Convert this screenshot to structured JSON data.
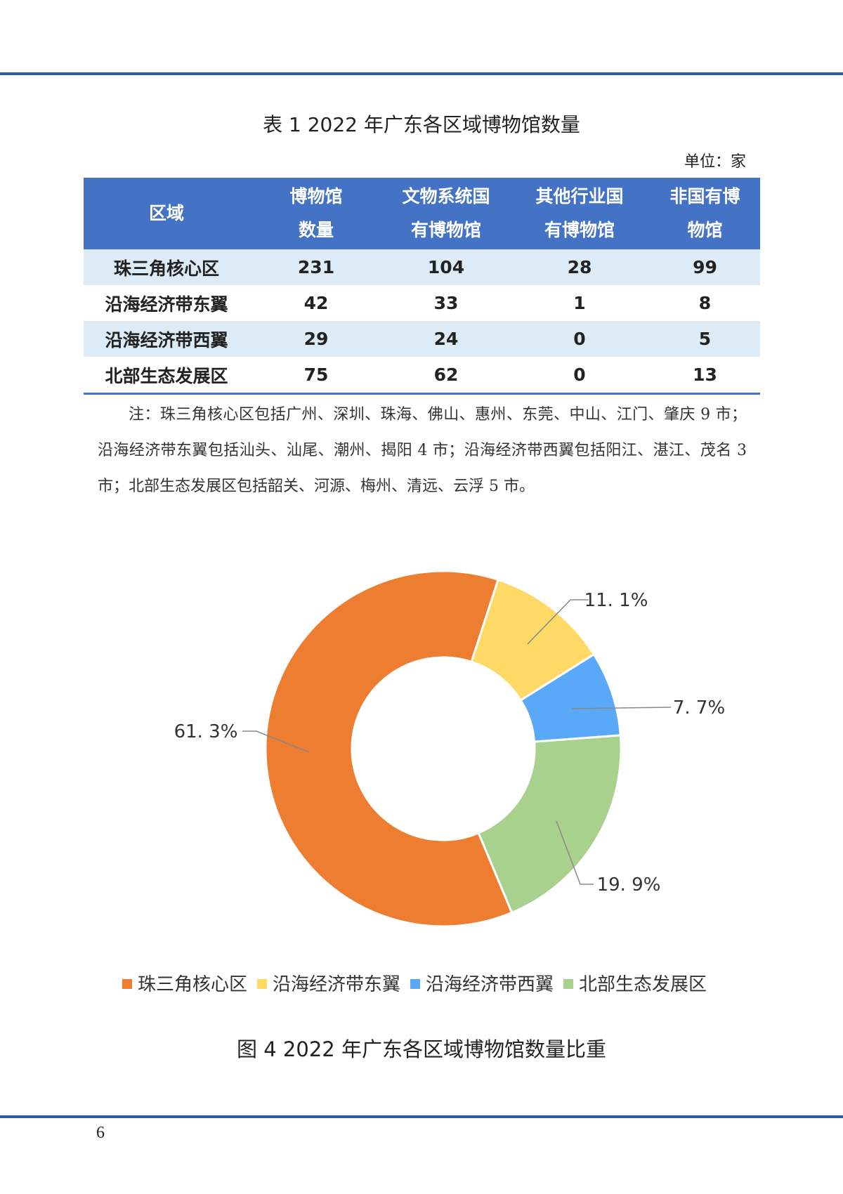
{
  "table": {
    "title": "表 1 2022 年广东各区域博物馆数量",
    "unit": "单位：家",
    "header": [
      [
        "区域"
      ],
      [
        "博物馆",
        "数量"
      ],
      [
        "文物系统国",
        "有博物馆"
      ],
      [
        "其他行业国",
        "有博物馆"
      ],
      [
        "非国有博",
        "物馆"
      ]
    ],
    "rows": [
      [
        "珠三角核心区",
        231,
        104,
        28,
        99
      ],
      [
        "沿海经济带东翼",
        42,
        33,
        1,
        8
      ],
      [
        "沿海经济带西翼",
        29,
        24,
        0,
        5
      ],
      [
        "北部生态发展区",
        75,
        62,
        0,
        13
      ]
    ]
  },
  "note": "注：珠三角核心区包括广州、深圳、珠海、佛山、惠州、东莞、中山、江门、肇庆 9 市；沿海经济带东翼包括汕头、汕尾、潮州、揭阳 4 市；沿海经济带西翼包括阳江、湛江、茂名 3 市；北部生态发展区包括韶关、河源、梅州、清远、云浮 5 市。",
  "chart_data": {
    "type": "pie",
    "title": "图 4 2022 年广东各区域博物馆数量比重",
    "categories": [
      "珠三角核心区",
      "沿海经济带东翼",
      "沿海经济带西翼",
      "北部生态发展区"
    ],
    "values": [
      61.3,
      11.1,
      7.7,
      19.9
    ],
    "value_labels": [
      "61. 3%",
      "11. 1%",
      "7. 7%",
      "19. 9%"
    ],
    "colors": [
      "#ed7d31",
      "#ffd966",
      "#5aa9f8",
      "#a9d18e"
    ],
    "donut": true
  },
  "page_number": "6"
}
